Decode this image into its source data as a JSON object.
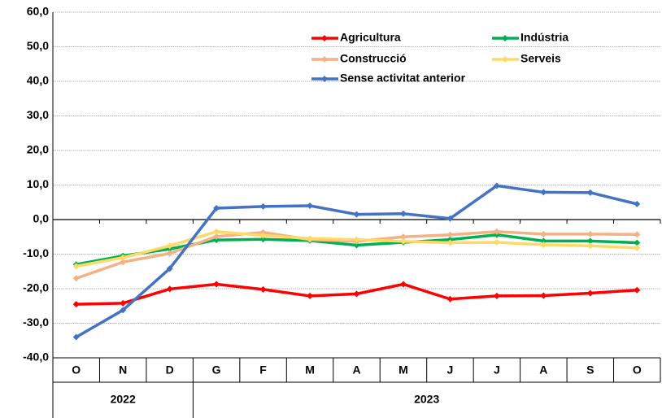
{
  "chart_data": {
    "type": "line",
    "categories": [
      "O",
      "N",
      "D",
      "G",
      "F",
      "M",
      "A",
      "M",
      "J",
      "J",
      "A",
      "S",
      "O"
    ],
    "years": [
      "2022",
      "2022",
      "2022",
      "2023",
      "2023",
      "2023",
      "2023",
      "2023",
      "2023",
      "2023",
      "2023",
      "2023",
      "2023"
    ],
    "series": [
      {
        "name": "Agricultura",
        "color": "#ff0000",
        "values": [
          -24.5,
          -24.2,
          -20.1,
          -18.7,
          -20.2,
          -22.1,
          -21.5,
          -18.7,
          -23.0,
          -22.1,
          -22.0,
          -21.3,
          -20.4
        ]
      },
      {
        "name": "Indústria",
        "color": "#00b050",
        "values": [
          -13.0,
          -10.5,
          -8.5,
          -5.9,
          -5.7,
          -6.1,
          -7.4,
          -6.6,
          -5.8,
          -4.4,
          -6.2,
          -6.2,
          -6.7
        ]
      },
      {
        "name": "Construcció",
        "color": "#f4b183",
        "values": [
          -17.0,
          -12.3,
          -9.8,
          -4.9,
          -3.7,
          -5.8,
          -6.3,
          -5.0,
          -4.4,
          -3.5,
          -4.2,
          -4.2,
          -4.3
        ]
      },
      {
        "name": "Serveis",
        "color": "#ffd966",
        "values": [
          -13.5,
          -11.0,
          -7.6,
          -3.5,
          -4.6,
          -5.5,
          -5.8,
          -6.3,
          -6.7,
          -6.6,
          -7.3,
          -7.6,
          -8.2
        ]
      },
      {
        "name": "Sense activitat anterior",
        "color": "#4472c4",
        "values": [
          -34.0,
          -26.2,
          -14.2,
          3.3,
          3.8,
          4.0,
          1.5,
          1.7,
          0.3,
          9.8,
          7.9,
          7.8,
          4.5
        ]
      }
    ],
    "ylim": [
      -40,
      60
    ],
    "yticks": [
      {
        "value": -40,
        "label": "-40,0"
      },
      {
        "value": -30,
        "label": "-30,0"
      },
      {
        "value": -20,
        "label": "-20,0"
      },
      {
        "value": -10,
        "label": "-10,0"
      },
      {
        "value": 0,
        "label": "0,0"
      },
      {
        "value": 10,
        "label": "10,0"
      },
      {
        "value": 20,
        "label": "20,0"
      },
      {
        "value": 30,
        "label": "30,0"
      },
      {
        "value": 40,
        "label": "40,0"
      },
      {
        "value": 50,
        "label": "50,0"
      },
      {
        "value": 60,
        "label": "60,0"
      }
    ],
    "grid": true
  }
}
